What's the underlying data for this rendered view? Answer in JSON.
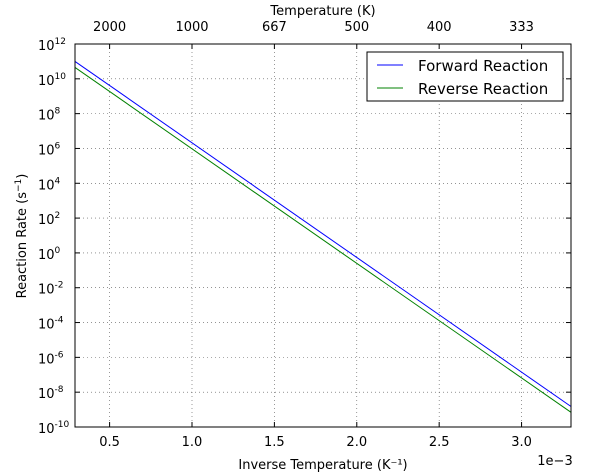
{
  "chart_data": {
    "type": "line",
    "title": "",
    "xlabel": "Inverse Temperature (K⁻¹)",
    "ylabel": "Reaction Rate (s",
    "ylabel_exp": "−1",
    "ylabel_close": ")",
    "offset_text": "1e−3",
    "top_xlabel": "Temperature (K)",
    "xlim": [
      0.00029,
      0.0033
    ],
    "ylim": [
      1e-10,
      1000000000000.0
    ],
    "yscale": "log",
    "grid": true,
    "legend_position": "upper right",
    "x_ticks": [
      {
        "value": 0.0005,
        "label": "0.5"
      },
      {
        "value": 0.001,
        "label": "1.0"
      },
      {
        "value": 0.0015,
        "label": "1.5"
      },
      {
        "value": 0.002,
        "label": "2.0"
      },
      {
        "value": 0.0025,
        "label": "2.5"
      },
      {
        "value": 0.003,
        "label": "3.0"
      }
    ],
    "top_x_ticks": [
      {
        "value": 0.0005,
        "label": "2000"
      },
      {
        "value": 0.001,
        "label": "1000"
      },
      {
        "value": 0.0015,
        "label": "667"
      },
      {
        "value": 0.002,
        "label": "500"
      },
      {
        "value": 0.0025,
        "label": "400"
      },
      {
        "value": 0.003,
        "label": "333"
      }
    ],
    "y_ticks": [
      {
        "value": 1000000000000.0,
        "base": "10",
        "exp": "12"
      },
      {
        "value": 10000000000.0,
        "base": "10",
        "exp": "10"
      },
      {
        "value": 100000000.0,
        "base": "10",
        "exp": "8"
      },
      {
        "value": 1000000.0,
        "base": "10",
        "exp": "6"
      },
      {
        "value": 10000.0,
        "base": "10",
        "exp": "4"
      },
      {
        "value": 100.0,
        "base": "10",
        "exp": "2"
      },
      {
        "value": 1.0,
        "base": "10",
        "exp": "0"
      },
      {
        "value": 0.01,
        "base": "10",
        "exp": "-2"
      },
      {
        "value": 0.0001,
        "base": "10",
        "exp": "-4"
      },
      {
        "value": 1e-06,
        "base": "10",
        "exp": "-6"
      },
      {
        "value": 1e-08,
        "base": "10",
        "exp": "-8"
      },
      {
        "value": 1e-10,
        "base": "10",
        "exp": "-10"
      }
    ],
    "series": [
      {
        "name": "Forward Reaction",
        "color": "#0000ff",
        "x": [
          0.00029,
          0.0033
        ],
        "y": [
          100000000000.0,
          1.5e-09
        ]
      },
      {
        "name": "Reverse Reaction",
        "color": "#008000",
        "x": [
          0.00029,
          0.0033
        ],
        "y": [
          45000000000.0,
          7e-10
        ]
      }
    ]
  }
}
